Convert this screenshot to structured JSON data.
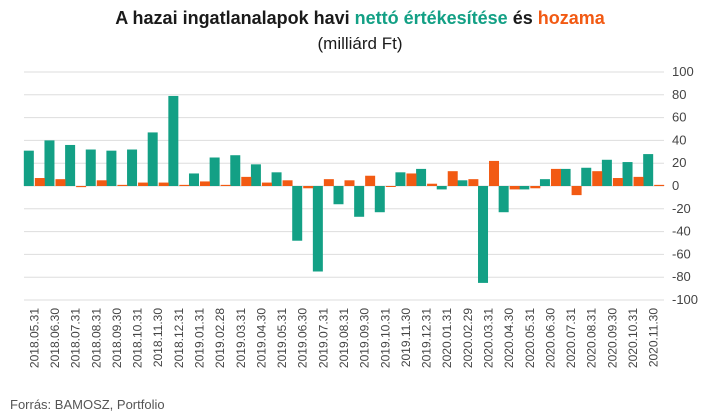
{
  "title": {
    "part1": "A hazai ingatlanalapok havi ",
    "part2": "nettó értékesítése",
    "part3": " és ",
    "part4": "hozama"
  },
  "subtitle": "(milliárd Ft)",
  "source": "Forrás: BAMOSZ, Portfolio",
  "colors": {
    "sales": "#13a085",
    "yield": "#f25a13",
    "grid": "#dddddd"
  },
  "chart_data": {
    "type": "bar",
    "categories": [
      "2018.05.31",
      "2018.06.30",
      "2018.07.31",
      "2018.08.31",
      "2018.09.30",
      "2018.10.31",
      "2018.11.30",
      "2018.12.31",
      "2019.01.31",
      "2019.02.28",
      "2019.03.31",
      "2019.04.30",
      "2019.05.31",
      "2019.06.30",
      "2019.07.31",
      "2019.08.31",
      "2019.09.30",
      "2019.10.31",
      "2019.11.30",
      "2019.12.31",
      "2020.01.31",
      "2020.02.29",
      "2020.03.31",
      "2020.04.30",
      "2020.05.31",
      "2020.06.30",
      "2020.07.31",
      "2020.08.31",
      "2020.09.30",
      "2020.10.31",
      "2020.11.30"
    ],
    "series": [
      {
        "name": "nettó értékesítése",
        "values": [
          31,
          40,
          36,
          32,
          31,
          32,
          47,
          79,
          11,
          25,
          27,
          19,
          12,
          -48,
          -75,
          -16,
          -27,
          -23,
          12,
          15,
          -3,
          5,
          -85,
          -23,
          -3,
          6,
          15,
          16,
          23,
          21,
          28
        ]
      },
      {
        "name": "hozama",
        "values": [
          7,
          6,
          -1,
          5,
          1,
          3,
          3,
          1,
          4,
          1,
          8,
          3,
          5,
          -2,
          6,
          5,
          9,
          0,
          11,
          2,
          13,
          6,
          22,
          -3,
          -2,
          15,
          -8,
          13,
          7,
          8,
          1
        ]
      }
    ],
    "ylim": [
      -100,
      100
    ],
    "yticks": [
      100,
      80,
      60,
      40,
      20,
      0,
      -20,
      -40,
      -60,
      -80,
      -100
    ],
    "grid": true,
    "legend": "none"
  }
}
